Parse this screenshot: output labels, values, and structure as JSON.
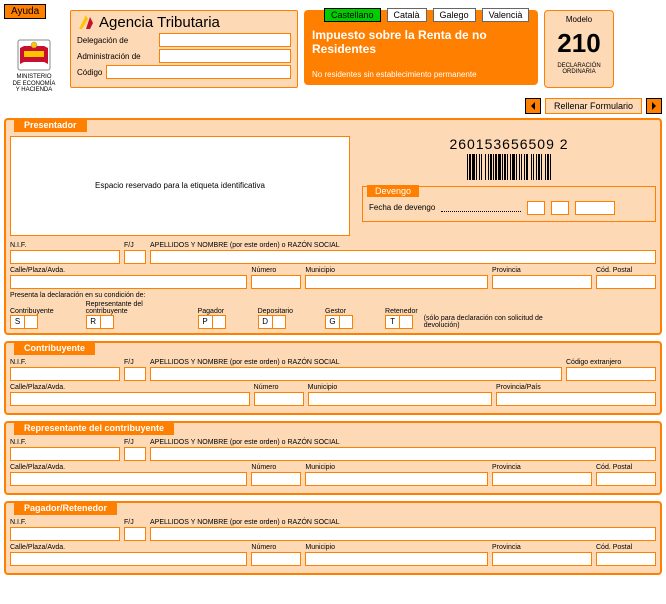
{
  "help": "Ayuda",
  "crest": {
    "line1": "MINISTERIO",
    "line2": "DE ECONOMÍA",
    "line3": "Y HACIENDA"
  },
  "agency": {
    "title": "Agencia Tributaria",
    "delegacion": "Delegación de",
    "administracion": "Administración de",
    "codigo": "Código"
  },
  "langs": {
    "castellano": "Castellano",
    "catala": "Català",
    "galego": "Galego",
    "valencia": "Valencià"
  },
  "titlebox": {
    "line1": "Impuesto sobre la Renta de no Residentes",
    "sub": "No residentes sin establecimiento permanente"
  },
  "model": {
    "label": "Modelo",
    "num": "210",
    "sub": "DECLARACIÓN ORDINARIA"
  },
  "fill": "Rellenar Formulario",
  "barcode_num": "260153656509 2",
  "sections": {
    "presentador": {
      "tab": "Presentador",
      "etiqueta": "Espacio reservado para la etiqueta identificativa",
      "devengo_tab": "Devengo",
      "devengo_label": "Fecha de devengo"
    },
    "labels": {
      "nif": "N.I.F.",
      "fj": "F/J",
      "apellidos": "APELLIDOS Y NOMBRE (por este orden) o RAZÓN SOCIAL",
      "calle": "Calle/Plaza/Avda.",
      "numero": "Número",
      "municipio": "Municipio",
      "provincia": "Provincia",
      "codpostal": "Cód. Postal",
      "cod_extranjero": "Código extranjero",
      "provincia_pais": "Provincia/País",
      "cond_intro": "Presenta la declaración en su condición de:",
      "contribuyente": "Contribuyente",
      "representante": "Representante del contribuyente",
      "pagador": "Pagador",
      "depositario": "Depositario",
      "gestor": "Gestor",
      "retenedor": "Retenedor",
      "retenedor_note": "(sólo para declaración con solicitud de devolución)"
    },
    "letters": {
      "s": "S",
      "r": "R",
      "p": "P",
      "d": "D",
      "g": "G",
      "t": "T"
    },
    "contribuyente_tab": "Contribuyente",
    "representante_tab": "Representante del contribuyente",
    "pagador_tab": "Pagador/Retenedor"
  },
  "colors": {
    "orange": "#ff7f00",
    "peach": "#fdd9b5",
    "green": "#00cc00"
  }
}
